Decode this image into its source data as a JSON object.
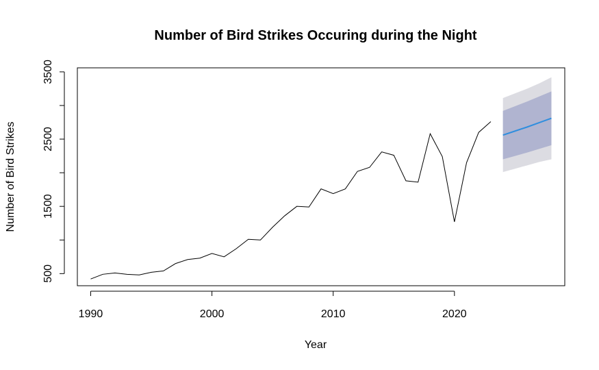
{
  "chart_data": {
    "type": "line",
    "title": "Number of Bird Strikes Occuring during the Night",
    "xlabel": "Year",
    "ylabel": "Number of Bird Strikes",
    "xlim": [
      1988.9,
      2029.1
    ],
    "ylim": [
      320,
      3560
    ],
    "x_ticks": [
      1990,
      2000,
      2010,
      2020
    ],
    "y_ticks": [
      500,
      1000,
      1500,
      2000,
      2500,
      3000,
      3500
    ],
    "y_tick_labels": [
      "500",
      "",
      "1500",
      "",
      "2500",
      "",
      "3500"
    ],
    "grid": false,
    "observed": {
      "x": [
        1990,
        1991,
        1992,
        1993,
        1994,
        1995,
        1996,
        1997,
        1998,
        1999,
        2000,
        2001,
        2002,
        2003,
        2004,
        2005,
        2006,
        2007,
        2008,
        2009,
        2010,
        2011,
        2012,
        2013,
        2014,
        2015,
        2016,
        2017,
        2018,
        2019,
        2020,
        2021,
        2022,
        2023
      ],
      "y": [
        420,
        490,
        510,
        490,
        480,
        520,
        540,
        650,
        710,
        730,
        800,
        750,
        870,
        1010,
        1000,
        1190,
        1360,
        1500,
        1490,
        1760,
        1690,
        1760,
        2020,
        2080,
        2310,
        2260,
        1880,
        1860,
        2580,
        2240,
        1270,
        2150,
        2600,
        2760
      ],
      "color": "#000000"
    },
    "forecast": {
      "x": [
        2024,
        2025,
        2026,
        2027,
        2028
      ],
      "mean": [
        2560,
        2620,
        2680,
        2745,
        2810
      ],
      "lower80": [
        2200,
        2250,
        2300,
        2355,
        2410
      ],
      "upper80": [
        2920,
        2990,
        3060,
        3135,
        3210
      ],
      "lower95": [
        2010,
        2060,
        2110,
        2160,
        2200
      ],
      "upper95": [
        3110,
        3180,
        3250,
        3330,
        3420
      ],
      "line_color": "#2f8ede",
      "band80_color": "#b0b4d0",
      "band95_color": "#dcdce2"
    }
  }
}
